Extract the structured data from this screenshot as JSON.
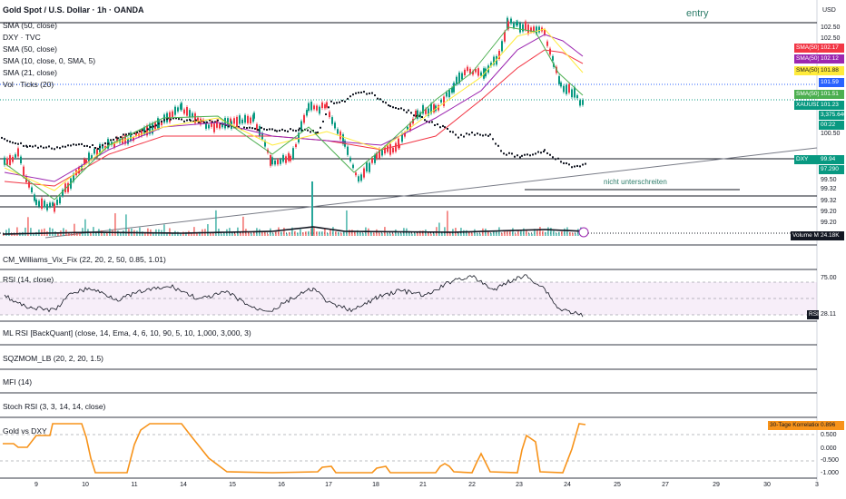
{
  "header": {
    "title": "Gold Spot / U.S. Dollar · 1h · OANDA",
    "currency": "USD"
  },
  "legend": [
    "SMA (50, close)",
    "DXY · TVC",
    "SMA (50, close)",
    "SMA (10, close, 0, SMA, 5)",
    "SMA (21, close)",
    "Vol · Ticks (20)"
  ],
  "annotations": {
    "entry": "entry",
    "note": "nicht unterschreiten"
  },
  "price_axis": {
    "top_labels": [
      "102.50",
      "102.50"
    ],
    "tags": [
      {
        "label": "SMA(50)",
        "value": "102.17",
        "color": "#f23645"
      },
      {
        "label": "SMA(50)",
        "value": "102.12",
        "color": "#9c27b0"
      },
      {
        "label": "SMA(50)",
        "value": "101.88",
        "color": "#ffeb3b"
      },
      {
        "label": "",
        "value": "101.59",
        "color": "#2962ff"
      },
      {
        "label": "SMA(50)",
        "value": "101.51",
        "color": "#4caf50"
      },
      {
        "label": "XAUUSD",
        "value": "101.23",
        "color": "#089981"
      },
      {
        "label": "",
        "value": "3,375.640",
        "color": "#089981"
      },
      {
        "label": "",
        "value": "00:22",
        "color": "#089981"
      },
      {
        "label": "",
        "value": "100.50",
        "color": "#ffffff"
      },
      {
        "label": "DXY",
        "value": "99.94",
        "color": "#089981"
      },
      {
        "label": "",
        "value": "97.290",
        "color": "#089981"
      },
      {
        "label": "",
        "value": "99.50",
        "color": "#ffffff"
      },
      {
        "label": "",
        "value": "99.32",
        "color": "#ffffff"
      },
      {
        "label": "",
        "value": "99.32",
        "color": "#ffffff"
      },
      {
        "label": "",
        "value": "99.20",
        "color": "#ffffff"
      },
      {
        "label": "",
        "value": "99.20",
        "color": "#ffffff"
      }
    ],
    "volume_ma_label": "Volume MA",
    "volume_ma_value": "24.18K"
  },
  "panes": [
    {
      "name": "CM_Williams_Vix_Fix (22, 20, 2, 50, 0.85, 1.01)"
    },
    {
      "name": "RSI (14, close)",
      "levels": [
        "75.00"
      ],
      "tag": "RSI",
      "value": "28.11"
    },
    {
      "name": "ML RSI [BackQuant] (close, 14, Ema, 4, 6, 10, 90, 5, 10, 1,000, 3,000, 3)"
    },
    {
      "name": "SQZMOM_LB (20, 2, 20, 1.5)"
    },
    {
      "name": "MFI (14)"
    },
    {
      "name": "Stoch RSI (3, 3, 14, 14, close)"
    },
    {
      "name": "Gold vs DXY",
      "tag": "30-Tage Korrelation",
      "value": "0.896",
      "levels": [
        "0.500",
        "0.000",
        "-0.500",
        "-1.000"
      ]
    }
  ],
  "time_axis": [
    "9",
    "10",
    "11",
    "14",
    "15",
    "16",
    "17",
    "18",
    "21",
    "22",
    "23",
    "24",
    "25",
    "27",
    "29",
    "30",
    "3"
  ],
  "colors": {
    "up": "#089981",
    "down": "#131722",
    "sma_red": "#f23645",
    "sma_purple": "#9c27b0",
    "sma_yellow": "#ffeb3b",
    "sma_green": "#4caf50",
    "corr": "#f7931a"
  }
}
